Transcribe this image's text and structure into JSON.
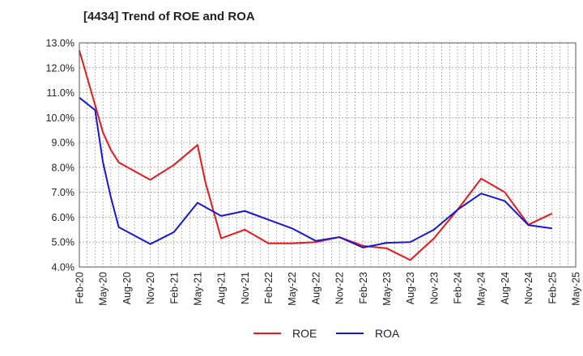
{
  "chart_data": {
    "type": "line",
    "title": "[4434]  Trend of ROE and ROA",
    "xlabel": "",
    "ylabel": "",
    "y_ticks": [
      "13.0%",
      "12.0%",
      "11.0%",
      "10.0%",
      "9.0%",
      "8.0%",
      "7.0%",
      "6.0%",
      "5.0%",
      "4.0%"
    ],
    "ylim": [
      4.0,
      13.0
    ],
    "x_ticks": [
      "Feb-20",
      "May-20",
      "Aug-20",
      "Nov-20",
      "Feb-21",
      "May-21",
      "Aug-21",
      "Nov-21",
      "Feb-22",
      "May-22",
      "Aug-22",
      "Nov-22",
      "Feb-23",
      "May-23",
      "Aug-23",
      "Nov-23",
      "Feb-24",
      "May-24",
      "Aug-24",
      "Nov-24",
      "Feb-25",
      "May-25"
    ],
    "grid": true,
    "legend_position": "bottom",
    "series": [
      {
        "name": "ROE",
        "color": "#e8191c",
        "points": [
          [
            "Feb-20",
            12.7
          ],
          [
            "Mar-20",
            11.6
          ],
          [
            "Apr-20",
            10.5
          ],
          [
            "May-20",
            9.4
          ],
          [
            "Jun-20",
            8.7
          ],
          [
            "Jul-20",
            8.2
          ],
          [
            "Nov-20",
            7.5
          ],
          [
            "Feb-21",
            8.1
          ],
          [
            "May-21",
            8.9
          ],
          [
            "Jun-21",
            7.4
          ],
          [
            "Aug-21",
            5.15
          ],
          [
            "Nov-21",
            5.5
          ],
          [
            "Feb-22",
            4.95
          ],
          [
            "May-22",
            4.95
          ],
          [
            "Aug-22",
            5.0
          ],
          [
            "Nov-22",
            5.2
          ],
          [
            "Feb-23",
            4.85
          ],
          [
            "May-23",
            4.75
          ],
          [
            "Aug-23",
            4.28
          ],
          [
            "Nov-23",
            5.15
          ],
          [
            "Feb-24",
            6.3
          ],
          [
            "May-24",
            7.55
          ],
          [
            "Aug-24",
            7.0
          ],
          [
            "Nov-24",
            5.7
          ],
          [
            "Feb-25",
            6.15
          ]
        ]
      },
      {
        "name": "ROA",
        "color": "#1717d8",
        "points": [
          [
            "Feb-20",
            10.8
          ],
          [
            "Apr-20",
            10.3
          ],
          [
            "May-20",
            8.2
          ],
          [
            "Jun-20",
            6.8
          ],
          [
            "Jul-20",
            5.6
          ],
          [
            "Nov-20",
            4.92
          ],
          [
            "Feb-21",
            5.4
          ],
          [
            "May-21",
            6.58
          ],
          [
            "Aug-21",
            6.05
          ],
          [
            "Nov-21",
            6.25
          ],
          [
            "Feb-22",
            5.9
          ],
          [
            "May-22",
            5.55
          ],
          [
            "Aug-22",
            5.05
          ],
          [
            "Nov-22",
            5.2
          ],
          [
            "Feb-23",
            4.78
          ],
          [
            "May-23",
            4.97
          ],
          [
            "Aug-23",
            5.0
          ],
          [
            "Nov-23",
            5.5
          ],
          [
            "Feb-24",
            6.3
          ],
          [
            "May-24",
            6.95
          ],
          [
            "Aug-24",
            6.65
          ],
          [
            "Nov-24",
            5.68
          ],
          [
            "Feb-25",
            5.55
          ]
        ]
      }
    ]
  },
  "colors": {
    "grid": "#888888",
    "axis": "#555555",
    "text": "#222222"
  }
}
